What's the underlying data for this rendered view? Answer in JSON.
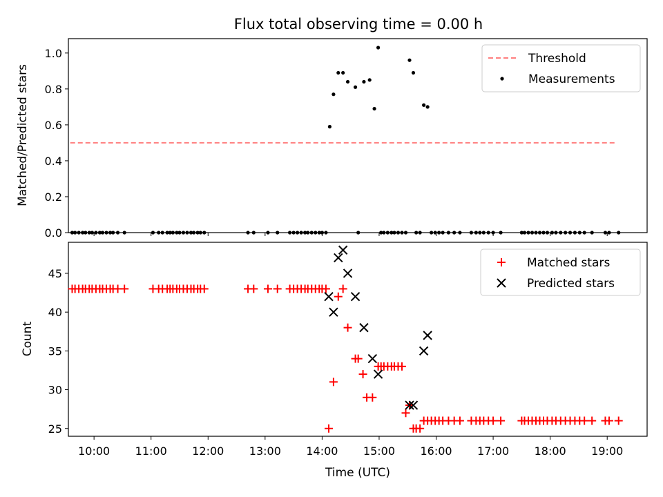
{
  "colors": {
    "threshold": "#ff7f7f",
    "measurement": "#000000",
    "matched": "#ff0000",
    "predicted": "#000000"
  },
  "chart_data": [
    {
      "type": "scatter",
      "title": "Flux total observing time = 0.00 h",
      "xlabel": "",
      "ylabel": "Matched/Predicted stars",
      "x_axis": "time_utc_hours",
      "xlim": [
        "09:33",
        "19:42"
      ],
      "ylim": [
        0,
        1.08
      ],
      "yticks": [
        "0.0",
        "0.2",
        "0.4",
        "0.6",
        "0.8",
        "1.0"
      ],
      "grid": false,
      "legend_position": "top-right",
      "series": [
        {
          "name": "Threshold",
          "kind": "line",
          "style": "dashed",
          "x": [
            "09:35",
            "19:10"
          ],
          "y": [
            0.5,
            0.5
          ]
        },
        {
          "name": "Measurements",
          "kind": "scatter",
          "marker": "dot",
          "x": [
            "09:37",
            "09:40",
            "09:44",
            "09:48",
            "09:51",
            "09:55",
            "09:58",
            "10:02",
            "10:06",
            "10:09",
            "10:13",
            "10:17",
            "10:20",
            "10:25",
            "10:32",
            "11:02",
            "11:08",
            "11:12",
            "11:17",
            "11:20",
            "11:23",
            "11:27",
            "11:30",
            "11:34",
            "11:38",
            "11:42",
            "11:45",
            "11:49",
            "11:52",
            "11:56",
            "12:42",
            "12:48",
            "13:03",
            "13:13",
            "13:26",
            "13:30",
            "13:34",
            "13:38",
            "13:42",
            "13:45",
            "13:49",
            "13:53",
            "13:57",
            "14:00",
            "14:04",
            "14:08",
            "14:12",
            "14:17",
            "14:22",
            "14:27",
            "14:35",
            "14:38",
            "14:44",
            "14:50",
            "14:55",
            "14:59",
            "15:02",
            "15:05",
            "15:09",
            "15:13",
            "15:16",
            "15:20",
            "15:24",
            "15:28",
            "15:32",
            "15:36",
            "15:39",
            "15:43",
            "15:47",
            "15:51",
            "15:55",
            "15:59",
            "16:03",
            "16:07",
            "16:13",
            "16:19",
            "16:25",
            "16:37",
            "16:42",
            "16:46",
            "16:50",
            "16:55",
            "17:00",
            "17:08",
            "17:30",
            "17:33",
            "17:37",
            "17:41",
            "17:45",
            "17:49",
            "17:53",
            "17:57",
            "18:02",
            "18:06",
            "18:11",
            "18:16",
            "18:21",
            "18:26",
            "18:31",
            "18:36",
            "18:44",
            "18:58",
            "19:02",
            "19:12"
          ],
          "y": [
            0,
            0,
            0,
            0,
            0,
            0,
            0,
            0,
            0,
            0,
            0,
            0,
            0,
            0,
            0,
            0,
            0,
            0,
            0,
            0,
            0,
            0,
            0,
            0,
            0,
            0,
            0,
            0,
            0,
            0,
            0,
            0,
            0,
            0,
            0,
            0,
            0,
            0,
            0,
            0,
            0,
            0,
            0,
            0,
            0,
            0.59,
            0.77,
            0.89,
            0.89,
            0.84,
            0.81,
            0,
            0.84,
            0.85,
            0.69,
            1.03,
            0,
            0,
            0,
            0,
            0,
            0,
            0,
            0,
            0.96,
            0.89,
            0,
            0,
            0.71,
            0.7,
            0,
            0,
            0,
            0,
            0,
            0,
            0,
            0,
            0,
            0,
            0,
            0,
            0,
            0,
            0,
            0,
            0,
            0,
            0,
            0,
            0,
            0,
            0,
            0,
            0,
            0,
            0,
            0,
            0,
            0,
            0,
            0,
            0,
            0
          ]
        }
      ]
    },
    {
      "type": "scatter",
      "title": "",
      "xlabel": "Time (UTC)",
      "ylabel": "Count",
      "x_axis": "time_utc_hours",
      "xlim": [
        "09:33",
        "19:42"
      ],
      "ylim": [
        24,
        49
      ],
      "xticks": [
        "10:00",
        "11:00",
        "12:00",
        "13:00",
        "14:00",
        "15:00",
        "16:00",
        "17:00",
        "18:00",
        "19:00"
      ],
      "yticks": [
        "25",
        "30",
        "35",
        "40",
        "45"
      ],
      "grid": false,
      "legend_position": "top-right",
      "series": [
        {
          "name": "Matched stars",
          "kind": "scatter",
          "marker": "plus",
          "x": [
            "09:37",
            "09:40",
            "09:44",
            "09:48",
            "09:51",
            "09:55",
            "09:58",
            "10:02",
            "10:06",
            "10:09",
            "10:13",
            "10:17",
            "10:20",
            "10:25",
            "10:32",
            "11:02",
            "11:08",
            "11:12",
            "11:17",
            "11:20",
            "11:23",
            "11:27",
            "11:30",
            "11:34",
            "11:38",
            "11:42",
            "11:45",
            "11:49",
            "11:52",
            "11:56",
            "12:42",
            "12:48",
            "13:03",
            "13:13",
            "13:26",
            "13:30",
            "13:34",
            "13:38",
            "13:42",
            "13:45",
            "13:49",
            "13:53",
            "13:57",
            "14:00",
            "14:04",
            "14:07",
            "14:12",
            "14:17",
            "14:22",
            "14:27",
            "14:35",
            "14:38",
            "14:43",
            "14:47",
            "14:53",
            "14:59",
            "15:02",
            "15:05",
            "15:09",
            "15:13",
            "15:16",
            "15:20",
            "15:24",
            "15:28",
            "15:32",
            "15:36",
            "15:39",
            "15:43",
            "15:47",
            "15:51",
            "15:55",
            "15:59",
            "16:03",
            "16:07",
            "16:13",
            "16:19",
            "16:25",
            "16:37",
            "16:42",
            "16:46",
            "16:50",
            "16:55",
            "17:00",
            "17:08",
            "17:30",
            "17:33",
            "17:37",
            "17:41",
            "17:45",
            "17:49",
            "17:53",
            "17:57",
            "18:02",
            "18:06",
            "18:11",
            "18:16",
            "18:21",
            "18:26",
            "18:31",
            "18:36",
            "18:44",
            "18:58",
            "19:02",
            "19:12"
          ],
          "y": [
            43,
            43,
            43,
            43,
            43,
            43,
            43,
            43,
            43,
            43,
            43,
            43,
            43,
            43,
            43,
            43,
            43,
            43,
            43,
            43,
            43,
            43,
            43,
            43,
            43,
            43,
            43,
            43,
            43,
            43,
            43,
            43,
            43,
            43,
            43,
            43,
            43,
            43,
            43,
            43,
            43,
            43,
            43,
            43,
            43,
            25,
            31,
            42,
            43,
            38,
            34,
            34,
            32,
            29,
            29,
            33,
            33,
            33,
            33,
            33,
            33,
            33,
            33,
            27,
            28,
            25,
            25,
            25,
            26,
            26,
            26,
            26,
            26,
            26,
            26,
            26,
            26,
            26,
            26,
            26,
            26,
            26,
            26,
            26,
            26,
            26,
            26,
            26,
            26,
            26,
            26,
            26,
            26,
            26,
            26,
            26,
            26,
            26,
            26,
            26,
            26,
            26,
            26,
            26
          ]
        },
        {
          "name": "Predicted stars",
          "kind": "scatter",
          "marker": "x",
          "x": [
            "14:07",
            "14:12",
            "14:17",
            "14:22",
            "14:27",
            "14:35",
            "14:44",
            "14:53",
            "14:59",
            "15:32",
            "15:36",
            "15:47",
            "15:51"
          ],
          "y": [
            42,
            40,
            47,
            48,
            45,
            42,
            38,
            34,
            32,
            28,
            28,
            35,
            37
          ]
        }
      ]
    }
  ]
}
